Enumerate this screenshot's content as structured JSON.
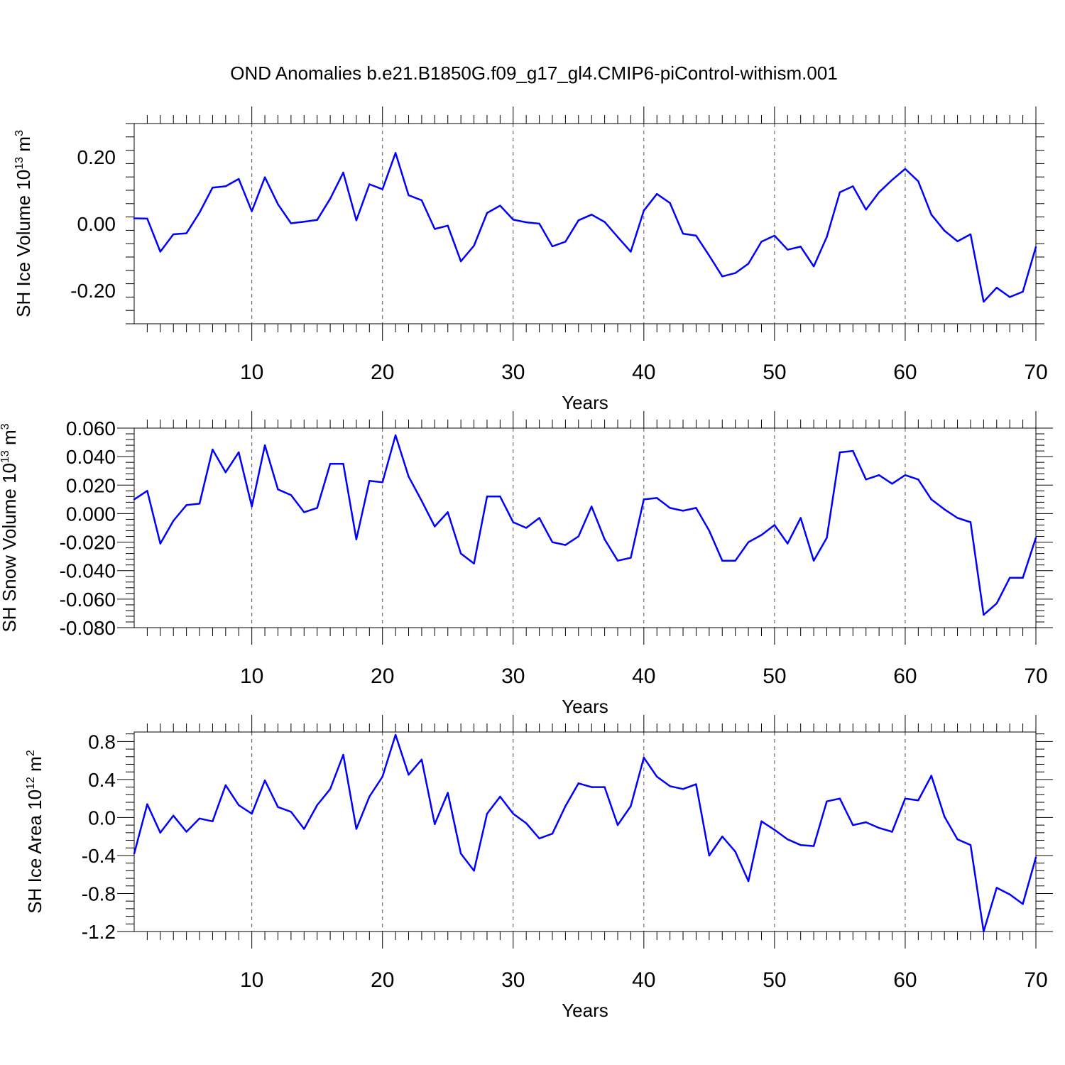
{
  "title": "OND Anomalies b.e21.B1850G.f09_g17_gl4.CMIP6-piControl-withism.001",
  "colors": {
    "series": "#0000ff",
    "frame": "#000000"
  },
  "chart_data": [
    {
      "type": "line",
      "ylabel_main": "SH Ice Volume 10",
      "ylabel_exp": "13",
      "ylabel_unit": " m",
      "ylabel_unit_exp": "3",
      "xlabel": "Years",
      "xlim": [
        1,
        70
      ],
      "ylim": [
        -0.3,
        0.3
      ],
      "xticks": [
        10,
        20,
        30,
        40,
        50,
        60,
        70
      ],
      "xtick_labels": [
        "10",
        "20",
        "30",
        "40",
        "50",
        "60",
        "70"
      ],
      "yticks": [
        -0.2,
        0.0,
        0.2
      ],
      "ytick_labels": [
        "-0.20",
        "0.00",
        "0.20"
      ],
      "grid": "vertical dashed at major x ticks",
      "x": [
        1,
        2,
        3,
        4,
        5,
        6,
        7,
        8,
        9,
        10,
        11,
        12,
        13,
        14,
        15,
        16,
        17,
        18,
        19,
        20,
        21,
        22,
        23,
        24,
        25,
        26,
        27,
        28,
        29,
        30,
        31,
        32,
        33,
        34,
        35,
        36,
        37,
        38,
        39,
        40,
        41,
        42,
        43,
        44,
        45,
        46,
        47,
        48,
        49,
        50,
        51,
        52,
        53,
        54,
        55,
        56,
        57,
        58,
        59,
        60,
        61,
        62,
        63,
        64,
        65,
        66,
        67,
        68,
        69,
        70
      ],
      "values": [
        0.016,
        0.015,
        -0.084,
        -0.032,
        -0.029,
        0.033,
        0.108,
        0.112,
        0.134,
        0.037,
        0.139,
        0.058,
        0.001,
        0.006,
        0.011,
        0.075,
        0.153,
        0.01,
        0.118,
        0.103,
        0.212,
        0.085,
        0.07,
        -0.016,
        -0.006,
        -0.113,
        -0.066,
        0.032,
        0.054,
        0.012,
        0.004,
        0.0,
        -0.068,
        -0.054,
        0.01,
        0.027,
        0.005,
        -0.04,
        -0.084,
        0.039,
        0.089,
        0.062,
        -0.03,
        -0.036,
        -0.096,
        -0.158,
        -0.148,
        -0.12,
        -0.054,
        -0.036,
        -0.078,
        -0.069,
        -0.128,
        -0.04,
        0.094,
        0.112,
        0.042,
        0.094,
        0.131,
        0.164,
        0.127,
        0.027,
        -0.021,
        -0.053,
        -0.032,
        -0.234,
        -0.192,
        -0.22,
        -0.204,
        -0.07
      ]
    },
    {
      "type": "line",
      "ylabel_main": "SH Snow Volume 10",
      "ylabel_exp": "13",
      "ylabel_unit": " m",
      "ylabel_unit_exp": "3",
      "xlabel": "Years",
      "xlim": [
        1,
        70
      ],
      "ylim": [
        -0.08,
        0.06
      ],
      "xticks": [
        10,
        20,
        30,
        40,
        50,
        60,
        70
      ],
      "xtick_labels": [
        "10",
        "20",
        "30",
        "40",
        "50",
        "60",
        "70"
      ],
      "yticks": [
        0.06,
        0.04,
        0.02,
        0.0,
        -0.02,
        -0.04,
        -0.06,
        -0.08
      ],
      "ytick_labels": [
        "0.060",
        "0.040",
        "0.020",
        "0.000",
        "-0.020",
        "-0.040",
        "-0.060",
        "-0.080"
      ],
      "grid": "vertical dashed at major x ticks",
      "x": [
        1,
        2,
        3,
        4,
        5,
        6,
        7,
        8,
        9,
        10,
        11,
        12,
        13,
        14,
        15,
        16,
        17,
        18,
        19,
        20,
        21,
        22,
        23,
        24,
        25,
        26,
        27,
        28,
        29,
        30,
        31,
        32,
        33,
        34,
        35,
        36,
        37,
        38,
        39,
        40,
        41,
        42,
        43,
        44,
        45,
        46,
        47,
        48,
        49,
        50,
        51,
        52,
        53,
        54,
        55,
        56,
        57,
        58,
        59,
        60,
        61,
        62,
        63,
        64,
        65,
        66,
        67,
        68,
        69,
        70
      ],
      "values": [
        0.01,
        0.016,
        -0.021,
        -0.005,
        0.006,
        0.007,
        0.045,
        0.029,
        0.043,
        0.005,
        0.048,
        0.017,
        0.013,
        0.001,
        0.004,
        0.035,
        0.035,
        -0.018,
        0.023,
        0.022,
        0.055,
        0.026,
        0.009,
        -0.009,
        0.001,
        -0.028,
        -0.035,
        0.012,
        0.012,
        -0.006,
        -0.01,
        -0.003,
        -0.02,
        -0.022,
        -0.016,
        0.005,
        -0.018,
        -0.033,
        -0.031,
        0.01,
        0.011,
        0.004,
        0.002,
        0.004,
        -0.012,
        -0.033,
        -0.033,
        -0.02,
        -0.015,
        -0.008,
        -0.021,
        -0.003,
        -0.033,
        -0.017,
        0.043,
        0.044,
        0.024,
        0.027,
        0.021,
        0.027,
        0.024,
        0.01,
        0.003,
        -0.003,
        -0.006,
        -0.071,
        -0.063,
        -0.045,
        -0.045,
        -0.017
      ]
    },
    {
      "type": "line",
      "ylabel_main": "SH Ice Area 10",
      "ylabel_exp": "12",
      "ylabel_unit": " m",
      "ylabel_unit_exp": "2",
      "xlabel": "Years",
      "xlim": [
        1,
        70
      ],
      "ylim": [
        -1.2,
        0.9
      ],
      "xticks": [
        10,
        20,
        30,
        40,
        50,
        60,
        70
      ],
      "xtick_labels": [
        "10",
        "20",
        "30",
        "40",
        "50",
        "60",
        "70"
      ],
      "yticks": [
        0.8,
        0.4,
        0.0,
        -0.4,
        -0.8,
        -1.2
      ],
      "ytick_labels": [
        "0.8",
        "0.4",
        "0.0",
        "-0.4",
        "-0.8",
        "-1.2"
      ],
      "grid": "vertical dashed at major x ticks",
      "x": [
        1,
        2,
        3,
        4,
        5,
        6,
        7,
        8,
        9,
        10,
        11,
        12,
        13,
        14,
        15,
        16,
        17,
        18,
        19,
        20,
        21,
        22,
        23,
        24,
        25,
        26,
        27,
        28,
        29,
        30,
        31,
        32,
        33,
        34,
        35,
        36,
        37,
        38,
        39,
        40,
        41,
        42,
        43,
        44,
        45,
        46,
        47,
        48,
        49,
        50,
        51,
        52,
        53,
        54,
        55,
        56,
        57,
        58,
        59,
        60,
        61,
        62,
        63,
        64,
        65,
        66,
        67,
        68,
        69,
        70
      ],
      "values": [
        -0.38,
        0.14,
        -0.16,
        0.02,
        -0.15,
        -0.01,
        -0.04,
        0.34,
        0.13,
        0.04,
        0.39,
        0.11,
        0.06,
        -0.12,
        0.13,
        0.3,
        0.66,
        -0.12,
        0.22,
        0.43,
        0.87,
        0.45,
        0.61,
        -0.07,
        0.26,
        -0.38,
        -0.56,
        0.04,
        0.22,
        0.04,
        -0.06,
        -0.22,
        -0.17,
        0.12,
        0.36,
        0.32,
        0.32,
        -0.08,
        0.12,
        0.63,
        0.43,
        0.33,
        0.3,
        0.35,
        -0.4,
        -0.2,
        -0.36,
        -0.67,
        -0.04,
        -0.13,
        -0.23,
        -0.29,
        -0.3,
        0.17,
        0.2,
        -0.08,
        -0.05,
        -0.11,
        -0.15,
        0.2,
        0.18,
        0.44,
        0.01,
        -0.23,
        -0.29,
        -1.2,
        -0.74,
        -0.81,
        -0.91,
        -0.42
      ]
    }
  ]
}
